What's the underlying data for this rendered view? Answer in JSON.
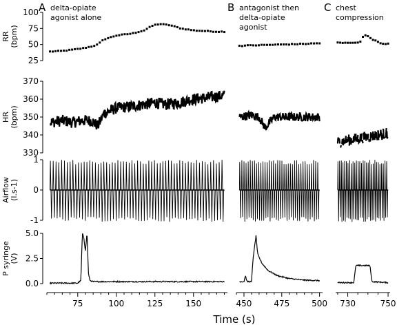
{
  "figure": {
    "x_title": "Time (s)",
    "panels": [
      {
        "letter": "A",
        "title_lines": [
          "delta-opiate",
          "agonist alone"
        ]
      },
      {
        "letter": "B",
        "title_lines": [
          "antagonist then",
          "delta-opiate",
          "agonist"
        ]
      },
      {
        "letter": "C",
        "title_lines": [
          "chest",
          "compression"
        ]
      }
    ]
  },
  "chart_data": {
    "type": "line",
    "rows": [
      {
        "key": "rr",
        "ylabel_lines": [
          "RR",
          "(bpm)"
        ],
        "ylim": [
          25,
          100
        ],
        "ticks": [
          "25",
          "50",
          "75",
          "100"
        ],
        "tick_values": [
          25,
          50,
          75,
          100
        ]
      },
      {
        "key": "hr",
        "ylabel_lines": [
          "HR",
          "(bpm)"
        ],
        "ylim": [
          330,
          370
        ],
        "ticks": [
          "330",
          "340",
          "350",
          "360",
          "370"
        ],
        "tick_values": [
          330,
          340,
          350,
          360,
          370
        ]
      },
      {
        "key": "airflow",
        "ylabel_lines": [
          "Airflow",
          "(l.s-1)"
        ],
        "ylim": [
          -1,
          1
        ],
        "ticks": [
          "-1",
          "0",
          "1"
        ],
        "tick_values": [
          -1,
          0,
          1
        ]
      },
      {
        "key": "psyr",
        "ylabel_lines": [
          "P syringe",
          "(V)"
        ],
        "ylim": [
          0,
          5
        ],
        "ticks": [
          "0.0",
          "2.5",
          "5.0"
        ],
        "tick_values": [
          0,
          2.5,
          5
        ]
      }
    ],
    "columns": [
      {
        "key": "A",
        "xlim": [
          55,
          172
        ],
        "ticks": [
          "75",
          "100",
          "125",
          "150"
        ],
        "tick_values": [
          75,
          100,
          125,
          150
        ]
      },
      {
        "key": "B",
        "xlim": [
          445,
          502
        ],
        "ticks": [
          "450",
          "475",
          "500"
        ],
        "tick_values": [
          450,
          475,
          500
        ]
      },
      {
        "key": "C",
        "xlim": [
          724,
          751
        ],
        "ticks": [
          "730",
          "750"
        ],
        "tick_values": [
          730,
          750
        ]
      }
    ],
    "series": {
      "A": {
        "rr": {
          "x": [
            57,
            65,
            72,
            78,
            84,
            88,
            92,
            100,
            110,
            118,
            124,
            128,
            135,
            142,
            150,
            158,
            165,
            170
          ],
          "y": [
            39,
            40,
            42,
            44,
            47,
            50,
            58,
            64,
            67,
            72,
            80,
            82,
            80,
            75,
            72,
            71,
            70,
            70
          ]
        },
        "hr": {
          "x": [
            57,
            65,
            72,
            78,
            84,
            88,
            92,
            100,
            110,
            118,
            125,
            132,
            140,
            150,
            160,
            170
          ],
          "y": [
            347,
            348,
            347,
            348,
            348,
            345,
            352,
            355,
            356,
            357,
            358,
            357,
            358,
            360,
            361,
            362
          ],
          "scatter": 4
        },
        "airflow": {
          "x": [
            57,
            170
          ],
          "pos_peak": 1.0,
          "neg_peak": -1.05,
          "cycles": 62
        },
        "psyr": {
          "x": [
            57,
            75,
            77,
            78,
            79,
            80,
            81,
            82,
            83,
            85,
            100,
            170
          ],
          "y": [
            0.05,
            0.05,
            0.3,
            5.0,
            4.5,
            3.2,
            5.1,
            0.9,
            0.3,
            0.2,
            0.2,
            0.2
          ]
        }
      },
      "B": {
        "rr": {
          "x": [
            447,
            460,
            475,
            490,
            500
          ],
          "y": [
            48,
            49,
            50,
            51,
            52
          ]
        },
        "hr": {
          "x": [
            447,
            455,
            460,
            462,
            464,
            470,
            480,
            490,
            500
          ],
          "y": [
            350,
            351,
            350,
            347,
            344,
            350,
            350,
            350,
            350
          ],
          "scatter": 3
        },
        "airflow": {
          "x": [
            447,
            500
          ],
          "pos_peak": 1.0,
          "neg_peak": -1.05,
          "cycles": 38
        },
        "psyr": {
          "x": [
            447,
            450,
            451,
            452,
            455,
            456,
            458,
            459,
            460,
            462,
            466,
            472,
            480,
            490,
            500
          ],
          "y": [
            0.2,
            0.2,
            0.8,
            0.2,
            0.2,
            2.5,
            4.8,
            3.0,
            2.6,
            2.0,
            1.3,
            0.8,
            0.5,
            0.35,
            0.3
          ]
        }
      },
      "C": {
        "rr": {
          "x": [
            725,
            731,
            736,
            738,
            740,
            742,
            744,
            746,
            748,
            750
          ],
          "y": [
            53,
            52,
            53,
            65,
            63,
            58,
            56,
            52,
            51,
            51
          ]
        },
        "hr": {
          "x": [
            725,
            730,
            735,
            740,
            745,
            750
          ],
          "y": [
            336,
            337,
            338,
            339,
            340,
            341
          ],
          "scatter": 4
        },
        "airflow": {
          "x": [
            725,
            750
          ],
          "pos_peak": 1.0,
          "neg_peak": -1.05,
          "cycles": 30
        },
        "psyr": {
          "x": [
            725,
            733,
            734,
            741,
            742,
            750
          ],
          "y": [
            0.1,
            0.1,
            1.8,
            1.8,
            0.2,
            0.1
          ]
        }
      }
    }
  }
}
